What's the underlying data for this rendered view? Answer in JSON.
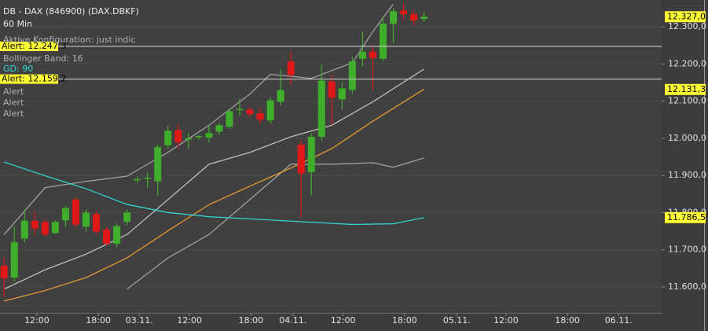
{
  "chart_data": {
    "type": "candlestick",
    "title": "DB - DAX (846900) (DAX.DBKF)",
    "subtitle": "60 Min",
    "notes": [
      {
        "text": "Aktive Konfiguration: just indic",
        "color": "#b0b0b0"
      },
      {
        "text": "Bollinger Band: 16",
        "color": "#b0b0b0"
      },
      {
        "text": "GD: 90",
        "color": "#33dddd"
      },
      {
        "text": "Alert",
        "color": "#b0b0b0"
      },
      {
        "text": "Alert",
        "color": "#b0b0b0"
      },
      {
        "text": "Alert",
        "color": "#b0b0b0"
      }
    ],
    "x": [
      0,
      1,
      2,
      3,
      4,
      5,
      6,
      7,
      8,
      9,
      10,
      11,
      12,
      13,
      14,
      15,
      16,
      17,
      18,
      19,
      20,
      21,
      22,
      23,
      24,
      25,
      26,
      27,
      28,
      29,
      30,
      31,
      32,
      33,
      34,
      35,
      36,
      37,
      38,
      39,
      40,
      41
    ],
    "open": [
      11657,
      11625,
      11730,
      11778,
      11775,
      11745,
      11779,
      11835,
      11762,
      11796,
      11754,
      11716,
      11775,
      11888,
      11892,
      11884,
      11981,
      12022,
      11998,
      12004,
      12002,
      12018,
      12031,
      12077,
      12077,
      12067,
      12048,
      12098,
      12207,
      11983,
      11909,
      12004,
      12153,
      12105,
      12130,
      12214,
      12233,
      12214,
      12308,
      12344,
      12334,
      12321
    ],
    "high": [
      11678,
      11762,
      11808,
      11804,
      11783,
      11779,
      11817,
      11842,
      11808,
      11804,
      11762,
      11772,
      11808,
      11898,
      11909,
      11983,
      12035,
      12039,
      12014,
      12010,
      12035,
      12041,
      12077,
      12107,
      12086,
      12081,
      12109,
      12186,
      12233,
      11993,
      12014,
      12199,
      12172,
      12151,
      12220,
      12287,
      12250,
      12329,
      12350,
      12363,
      12346,
      12340
    ],
    "low": [
      11573,
      11615,
      11720,
      11741,
      11735,
      11741,
      11762,
      11758,
      11749,
      11741,
      11711,
      11707,
      11766,
      11880,
      11867,
      11846,
      11972,
      11972,
      11972,
      11995,
      11989,
      12010,
      12025,
      12060,
      12056,
      12039,
      12039,
      12088,
      12144,
      11787,
      11846,
      11993,
      12035,
      12077,
      12119,
      12193,
      12130,
      12207,
      12256,
      12319,
      12304,
      12313
    ],
    "close": [
      11623,
      11720,
      11778,
      11757,
      11741,
      11775,
      11812,
      11768,
      11800,
      11749,
      11716,
      11764,
      11800,
      11890,
      11894,
      11976,
      12020,
      11989,
      12000,
      12006,
      12014,
      12035,
      12073,
      12079,
      12065,
      12050,
      12102,
      12130,
      12170,
      11905,
      12004,
      12155,
      12109,
      12134,
      12207,
      12233,
      12216,
      12308,
      12342,
      12334,
      12317,
      12327
    ],
    "up_color": "#3fae2a",
    "down_color": "#e01818",
    "lines": [
      {
        "color": "#a8a8a8",
        "x": [
          0,
          4,
          8,
          12,
          16,
          20,
          24,
          26,
          30,
          34,
          36,
          38
        ],
        "values": [
          11741,
          11867,
          11884,
          11898,
          11962,
          12035,
          12119,
          12172,
          12161,
          12203,
          12287,
          12361
        ]
      },
      {
        "color": "#c8c8c8",
        "x": [
          0,
          4,
          8,
          12,
          16,
          20,
          24,
          28,
          32,
          36,
          41
        ],
        "values": [
          11594,
          11646,
          11688,
          11741,
          11835,
          11930,
          11962,
          12004,
          12035,
          12098,
          12186
        ]
      },
      {
        "color": "#a8a8a8",
        "x": [
          12,
          16,
          20,
          24,
          28,
          32,
          36,
          38,
          41
        ],
        "values": [
          11594,
          11678,
          11741,
          11835,
          11930,
          11930,
          11934,
          11922,
          11947
        ]
      },
      {
        "color": "#f0a030",
        "x": [
          0,
          4,
          8,
          12,
          16,
          20,
          24,
          28,
          32,
          36,
          41
        ],
        "values": [
          11562,
          11590,
          11625,
          11678,
          11751,
          11821,
          11871,
          11920,
          11972,
          12046,
          12132
        ]
      },
      {
        "color": "#33dddd",
        "x": [
          0,
          4,
          8,
          12,
          16,
          20,
          26,
          30,
          34,
          38,
          41
        ],
        "values": [
          11936,
          11899,
          11864,
          11822,
          11800,
          11789,
          11780,
          11774,
          11768,
          11770,
          11786.5
        ]
      }
    ],
    "alerts": [
      {
        "value": 12247.3,
        "label": "Alert: 12.247,3"
      },
      {
        "value": 12159.2,
        "label": "Alert: 12.159,2"
      }
    ],
    "price_tags": [
      {
        "value": 12327,
        "label": "12.327,0"
      },
      {
        "value": 12131.3,
        "label": "12.131,3"
      },
      {
        "value": 11786.5,
        "label": "11.786,5"
      }
    ],
    "xlim": [
      -0.4,
      64.2
    ],
    "xticks": [
      {
        "value": 3.2,
        "label": "12:00"
      },
      {
        "value": 9.2,
        "label": "18:00"
      },
      {
        "value": 13.2,
        "label": "03.11."
      },
      {
        "value": 18.1,
        "label": "12:00"
      },
      {
        "value": 24.1,
        "label": "18:00"
      },
      {
        "value": 28.2,
        "label": "04.11."
      },
      {
        "value": 33.1,
        "label": "12:00"
      },
      {
        "value": 39.1,
        "label": "18:00"
      },
      {
        "value": 44.2,
        "label": "05.11."
      },
      {
        "value": 49,
        "label": "12:00"
      },
      {
        "value": 55,
        "label": "18:00"
      },
      {
        "value": 60,
        "label": "06.11."
      }
    ],
    "ylim": [
      11530,
      12372
    ],
    "yticks": [
      {
        "value": 11600,
        "label": "11.600,0"
      },
      {
        "value": 11700,
        "label": "11.700,0"
      },
      {
        "value": 11800,
        "label": "11.800,0"
      },
      {
        "value": 11900,
        "label": "11.900,0"
      },
      {
        "value": 12000,
        "label": "12.000,0"
      },
      {
        "value": 12100,
        "label": "12.100,0"
      },
      {
        "value": 12200,
        "label": "12.200,0"
      },
      {
        "value": 12300,
        "label": "12.300,0"
      }
    ],
    "grid": true
  }
}
